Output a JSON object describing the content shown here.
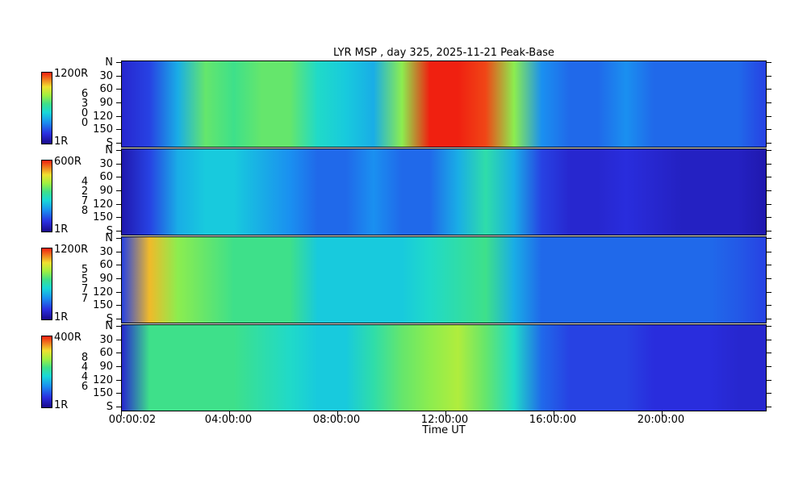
{
  "chart_data": {
    "type": "heatmap",
    "title": "LYR MSP , day 325, 2025-11-21 Peak-Base",
    "xlabel": "Time UT",
    "x_ticks": [
      "00:00:02",
      "04:00:00",
      "08:00:00",
      "12:00:00",
      "16:00:00",
      "20:00:00"
    ],
    "x_range_hours": [
      0,
      24
    ],
    "y_range_deg": [
      0,
      180
    ],
    "y_ticks": [
      "N",
      "30",
      "60",
      "90",
      "120",
      "150",
      "S"
    ],
    "colormap": "jet",
    "panels": [
      {
        "cbar_max": "1200R",
        "cbar_min": "1R",
        "cbar_mid": [
          "6",
          "3",
          "0",
          "0"
        ],
        "intensity_profile": [
          0.1,
          0.15,
          0.3,
          0.55,
          0.5,
          0.55,
          0.55,
          0.4,
          0.35,
          0.3,
          0.6,
          1.0,
          1.0,
          0.95,
          0.6,
          0.25,
          0.2,
          0.2,
          0.25,
          0.2,
          0.2,
          0.2,
          0.2,
          0.15
        ]
      },
      {
        "cbar_max": "600R",
        "cbar_min": "1R",
        "cbar_mid": [
          "4",
          "2",
          "7",
          "8"
        ],
        "intensity_profile": [
          0.05,
          0.15,
          0.3,
          0.35,
          0.35,
          0.3,
          0.25,
          0.2,
          0.2,
          0.25,
          0.2,
          0.2,
          0.3,
          0.45,
          0.3,
          0.15,
          0.1,
          0.1,
          0.12,
          0.1,
          0.08,
          0.08,
          0.08,
          0.05
        ]
      },
      {
        "cbar_max": "1200R",
        "cbar_min": "1R",
        "cbar_mid": [
          "5",
          "5",
          "7",
          "7"
        ],
        "intensity_profile": [
          0.15,
          0.8,
          0.6,
          0.55,
          0.5,
          0.5,
          0.5,
          0.35,
          0.35,
          0.35,
          0.35,
          0.4,
          0.45,
          0.5,
          0.3,
          0.2,
          0.2,
          0.2,
          0.2,
          0.2,
          0.2,
          0.2,
          0.18,
          0.15
        ]
      },
      {
        "cbar_max": "400R",
        "cbar_min": "1R",
        "cbar_mid": [
          "8",
          "4",
          "4",
          "6"
        ],
        "intensity_profile": [
          0.1,
          0.5,
          0.5,
          0.5,
          0.5,
          0.45,
          0.4,
          0.35,
          0.35,
          0.45,
          0.55,
          0.6,
          0.65,
          0.55,
          0.4,
          0.2,
          0.15,
          0.15,
          0.15,
          0.12,
          0.12,
          0.12,
          0.1,
          0.1
        ]
      }
    ],
    "colors": {
      "low": "#1a0a8c",
      "mid": "#18d8d8",
      "high": "#f02010"
    }
  }
}
